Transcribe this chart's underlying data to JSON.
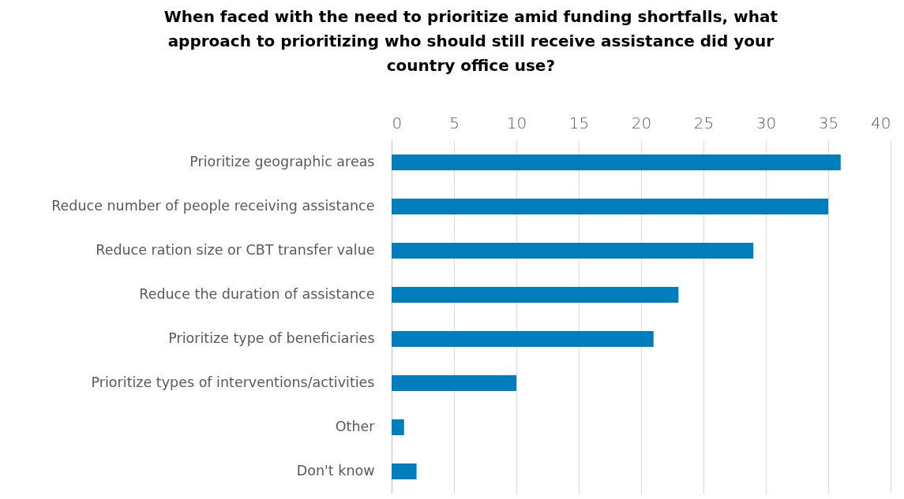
{
  "chart_data": {
    "type": "bar",
    "orientation": "horizontal",
    "title": "When faced with the need to prioritize amid funding shortfalls, what approach to prioritizing who should still receive assistance did your country office use?",
    "categories": [
      "Prioritize geographic areas",
      "Reduce number of people receiving assistance",
      "Reduce ration size or CBT transfer value",
      "Reduce the duration of assistance",
      "Prioritize type of beneficiaries",
      "Prioritize types of interventions/activities",
      "Other",
      "Don't know"
    ],
    "values": [
      36,
      35,
      29,
      23,
      21,
      10,
      1,
      2
    ],
    "color": "#007dbc",
    "xlim": [
      0,
      40
    ],
    "xticks": [
      0,
      5,
      10,
      15,
      20,
      25,
      30,
      35,
      40
    ],
    "grid": "x"
  }
}
